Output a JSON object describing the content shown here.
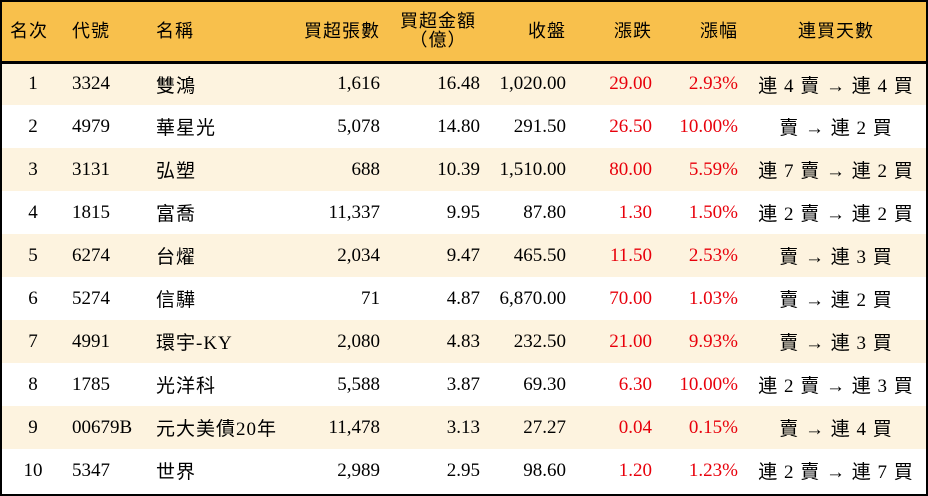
{
  "table": {
    "headers": {
      "rank": "名次",
      "code": "代號",
      "name": "名稱",
      "net_buy_lots": "買超張數",
      "net_buy_amount_line1": "買超金額",
      "net_buy_amount_line2": "（億）",
      "close": "收盤",
      "change": "漲跌",
      "change_pct": "漲幅",
      "buy_streak": "連買天數"
    },
    "colors": {
      "header_bg": "#F8C04C",
      "row_alt_bg": "#FDF3DF",
      "row_bg": "#FFFFFF",
      "up_color": "#E8000B",
      "border": "#000000"
    },
    "rows": [
      {
        "rank": "1",
        "code": "3324",
        "name": "雙鴻",
        "lots": "1,616",
        "amount": "16.48",
        "close": "1,020.00",
        "change": "29.00",
        "pct": "2.93%",
        "streak": "連 4 賣 → 連 4 買"
      },
      {
        "rank": "2",
        "code": "4979",
        "name": "華星光",
        "lots": "5,078",
        "amount": "14.80",
        "close": "291.50",
        "change": "26.50",
        "pct": "10.00%",
        "streak": "賣 → 連 2 買"
      },
      {
        "rank": "3",
        "code": "3131",
        "name": "弘塑",
        "lots": "688",
        "amount": "10.39",
        "close": "1,510.00",
        "change": "80.00",
        "pct": "5.59%",
        "streak": "連 7 賣 → 連 2 買"
      },
      {
        "rank": "4",
        "code": "1815",
        "name": "富喬",
        "lots": "11,337",
        "amount": "9.95",
        "close": "87.80",
        "change": "1.30",
        "pct": "1.50%",
        "streak": "連 2 賣 → 連 2 買"
      },
      {
        "rank": "5",
        "code": "6274",
        "name": "台燿",
        "lots": "2,034",
        "amount": "9.47",
        "close": "465.50",
        "change": "11.50",
        "pct": "2.53%",
        "streak": "賣 → 連 3 買"
      },
      {
        "rank": "6",
        "code": "5274",
        "name": "信驊",
        "lots": "71",
        "amount": "4.87",
        "close": "6,870.00",
        "change": "70.00",
        "pct": "1.03%",
        "streak": "賣 → 連 2 買"
      },
      {
        "rank": "7",
        "code": "4991",
        "name": "環宇-KY",
        "lots": "2,080",
        "amount": "4.83",
        "close": "232.50",
        "change": "21.00",
        "pct": "9.93%",
        "streak": "賣 → 連 3 買"
      },
      {
        "rank": "8",
        "code": "1785",
        "name": "光洋科",
        "lots": "5,588",
        "amount": "3.87",
        "close": "69.30",
        "change": "6.30",
        "pct": "10.00%",
        "streak": "連 2 賣 → 連 3 買"
      },
      {
        "rank": "9",
        "code": "00679B",
        "name": "元大美債20年",
        "lots": "11,478",
        "amount": "3.13",
        "close": "27.27",
        "change": "0.04",
        "pct": "0.15%",
        "streak": "賣 → 連 4 買"
      },
      {
        "rank": "10",
        "code": "5347",
        "name": "世界",
        "lots": "2,989",
        "amount": "2.95",
        "close": "98.60",
        "change": "1.20",
        "pct": "1.23%",
        "streak": "連 2 賣 → 連 7 買"
      }
    ]
  }
}
